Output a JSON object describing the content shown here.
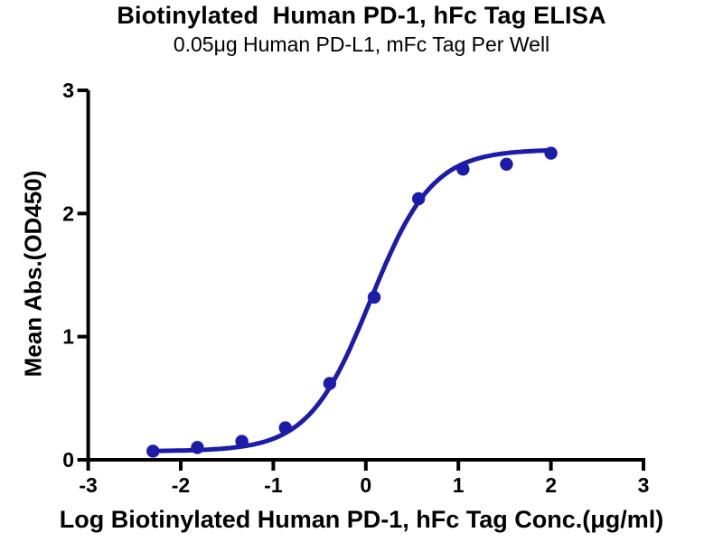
{
  "page": {
    "background": "#ffffff"
  },
  "chart_data": {
    "type": "scatter",
    "title": "Biotinylated  Human PD-1, hFc Tag ELISA",
    "subtitle": "0.05μg Human PD-L1, mFc Tag Per Well",
    "xlabel": "Log Biotinylated Human PD-1, hFc Tag Conc.(μg/ml)",
    "ylabel": "Mean Abs.(OD450)",
    "xlim": [
      -3,
      3
    ],
    "ylim": [
      0,
      3
    ],
    "x_ticks": [
      -3,
      -2,
      -1,
      0,
      1,
      2,
      3
    ],
    "y_ticks": [
      0,
      1,
      2,
      3
    ],
    "grid": false,
    "legend": "none",
    "series": [
      {
        "name": "Biotinylated Human PD-1, hFc Tag",
        "x": [
          -2.3,
          -1.82,
          -1.34,
          -0.87,
          -0.39,
          0.09,
          0.57,
          1.05,
          1.52,
          2.0
        ],
        "y": [
          0.07,
          0.1,
          0.15,
          0.26,
          0.62,
          1.32,
          2.12,
          2.36,
          2.4,
          2.49
        ],
        "fit": {
          "model": "4PL",
          "bottom": 0.07,
          "top": 2.52,
          "logEC50": 0.05,
          "hillslope": 1.3,
          "x_range": [
            -2.3,
            2.0
          ]
        }
      }
    ],
    "colors": {
      "axis": "#000000",
      "text": "#000000",
      "series": "#1c1cab"
    }
  }
}
